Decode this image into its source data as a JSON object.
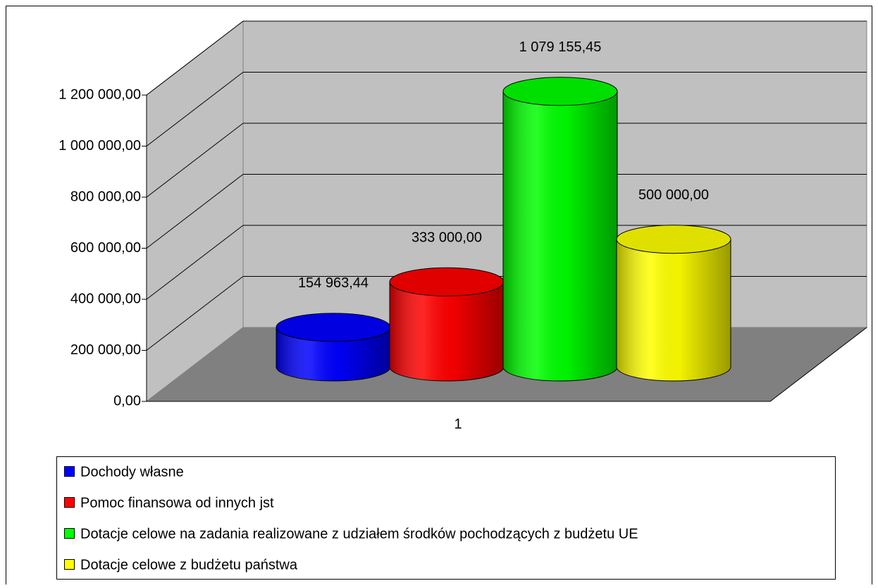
{
  "chart_data": {
    "type": "bar",
    "categories": [
      "1"
    ],
    "series": [
      {
        "name": "Dochody własne",
        "color": "#0000ff",
        "values": [
          154963.44
        ],
        "value_labels": [
          "154 963,44"
        ]
      },
      {
        "name": "Pomoc finansowa od innych jst",
        "color": "#ff0000",
        "values": [
          333000
        ],
        "value_labels": [
          "333 000,00"
        ]
      },
      {
        "name": "Dotacje celowe na zadania realizowane z udziałem środków pochodzących z budżetu UE",
        "color": "#00ff00",
        "values": [
          1079155.45
        ],
        "value_labels": [
          "1 079 155,45"
        ]
      },
      {
        "name": "Dotacje celowe z budżetu państwa",
        "color": "#ffff00",
        "values": [
          500000
        ],
        "value_labels": [
          "500 000,00"
        ]
      }
    ],
    "ylim": [
      0,
      1200000
    ],
    "yticks": [
      {
        "value": 0,
        "label": "0,00"
      },
      {
        "value": 200000,
        "label": "200 000,00"
      },
      {
        "value": 400000,
        "label": "400 000,00"
      },
      {
        "value": 600000,
        "label": "600 000,00"
      },
      {
        "value": 800000,
        "label": "800 000,00"
      },
      {
        "value": 1000000,
        "label": "1 000 000,00"
      },
      {
        "value": 1200000,
        "label": "1 200 000,00"
      }
    ],
    "grid": true,
    "legend": "bottom"
  }
}
